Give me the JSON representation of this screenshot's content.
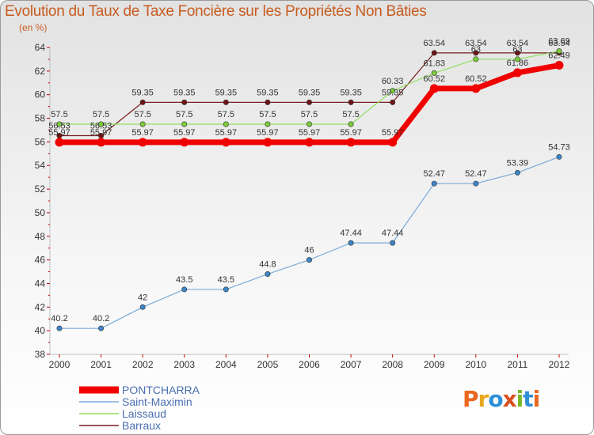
{
  "page": {
    "title": "Evolution du Taux de Taxe Foncière sur les Propriétés Non Bâties",
    "subtitle": "(en %)"
  },
  "logo": {
    "text": "Proxiti",
    "colors": [
      "#e8681e",
      "#e8a81e",
      "#2e8fd8",
      "#d8501e",
      "#78b828",
      "#2e8fd8",
      "#e8681e"
    ]
  },
  "chart_data": {
    "type": "line",
    "title": "Evolution du Taux de Taxe Foncière sur les Propriétés Non Bâties",
    "ylabel": "(en %)",
    "xlabel": "",
    "x": [
      "2000",
      "2001",
      "2002",
      "2003",
      "2004",
      "2005",
      "2006",
      "2007",
      "2008",
      "2009",
      "2010",
      "2011",
      "2012"
    ],
    "ylim": [
      38,
      64
    ],
    "yticks": [
      38,
      40,
      42,
      44,
      46,
      48,
      50,
      52,
      54,
      56,
      58,
      60,
      62,
      64
    ],
    "grid": false,
    "legend_position": "bottom-left",
    "series": [
      {
        "name": "Barraux",
        "color": "#7a1e1e",
        "marker": "#6e1414",
        "width": 1.2,
        "values": [
          56.53,
          56.53,
          59.35,
          59.35,
          59.35,
          59.35,
          59.35,
          59.35,
          59.35,
          63.54,
          63.54,
          63.54,
          63.54
        ],
        "labels": [
          "56.53",
          "56.53",
          "59.35",
          "59.35",
          "59.35",
          "59.35",
          "59.35",
          "59.35",
          "59.35",
          "63.54",
          "63.54",
          "63.54",
          "63.54"
        ]
      },
      {
        "name": "Laissaud",
        "color": "#90e060",
        "marker": "#7ccc3c",
        "width": 1.2,
        "values": [
          57.5,
          57.5,
          57.5,
          57.5,
          57.5,
          57.5,
          57.5,
          57.5,
          60.33,
          61.83,
          63,
          63,
          63.69
        ],
        "labels": [
          "57.5",
          "57.5",
          "57.5",
          "57.5",
          "57.5",
          "57.5",
          "57.5",
          "57.5",
          "60.33",
          "61.83",
          "63",
          "63",
          "63.69"
        ]
      },
      {
        "name": "Saint-Maximin",
        "color": "#7aaad8",
        "marker": "#3c86c8",
        "width": 1.2,
        "values": [
          40.2,
          40.2,
          42,
          43.5,
          43.5,
          44.8,
          46,
          47.44,
          47.44,
          52.47,
          52.47,
          53.39,
          54.73
        ],
        "labels": [
          "40.2",
          "40.2",
          "42",
          "43.5",
          "43.5",
          "44.8",
          "46",
          "47.44",
          "47.44",
          "52.47",
          "52.47",
          "53.39",
          "54.73"
        ]
      },
      {
        "name": "PONTCHARRA",
        "color": "#f00000",
        "marker": "#f00000",
        "width": 7,
        "values": [
          55.97,
          55.97,
          55.97,
          55.97,
          55.97,
          55.97,
          55.97,
          55.97,
          55.97,
          60.52,
          60.52,
          61.86,
          62.49
        ],
        "labels": [
          "55.97",
          "55.97",
          "55.97",
          "55.97",
          "55.97",
          "55.97",
          "55.97",
          "55.97",
          "55.97",
          "60.52",
          "60.52",
          "61.86",
          "62.49"
        ]
      }
    ],
    "legend": [
      "PONTCHARRA",
      "Saint-Maximin",
      "Laissaud",
      "Barraux"
    ]
  }
}
